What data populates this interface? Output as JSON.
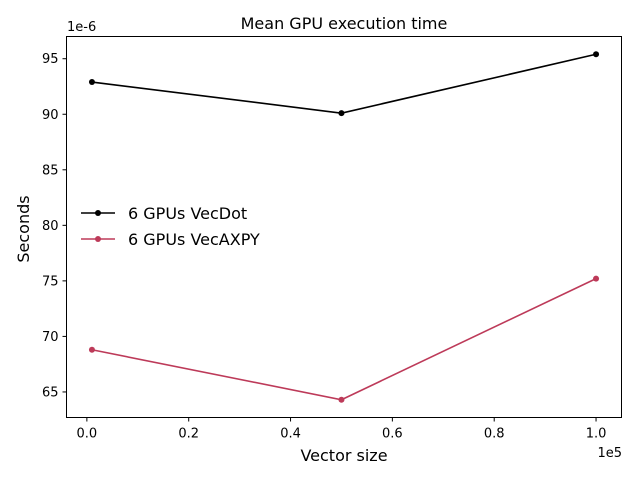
{
  "chart_data": {
    "type": "line",
    "title": "Mean GPU execution time",
    "xlabel": "Vector size",
    "ylabel": "Seconds",
    "x_offset_label": "1e5",
    "y_offset_label": "1e-6",
    "x_scale": 100000,
    "y_scale": 1e-06,
    "xlim": [
      -0.04,
      1.05
    ],
    "ylim": [
      62.7,
      97.0
    ],
    "xticks": [
      0.0,
      0.2,
      0.4,
      0.6,
      0.8,
      1.0
    ],
    "xtick_labels": [
      "0.0",
      "0.2",
      "0.4",
      "0.6",
      "0.8",
      "1.0"
    ],
    "yticks": [
      65,
      70,
      75,
      80,
      85,
      90,
      95
    ],
    "ytick_labels": [
      "65",
      "70",
      "75",
      "80",
      "85",
      "90",
      "95"
    ],
    "grid": false,
    "legend_position": "center-left",
    "series": [
      {
        "name": "6 GPUs VecDot",
        "color": "#000000",
        "x": [
          0.01,
          0.5,
          1.0
        ],
        "y": [
          92.9,
          90.1,
          95.4
        ]
      },
      {
        "name": "6 GPUs VecAXPY",
        "color": "#bd3a59",
        "x": [
          0.01,
          0.5,
          1.0
        ],
        "y": [
          68.8,
          64.3,
          75.2
        ]
      }
    ]
  }
}
